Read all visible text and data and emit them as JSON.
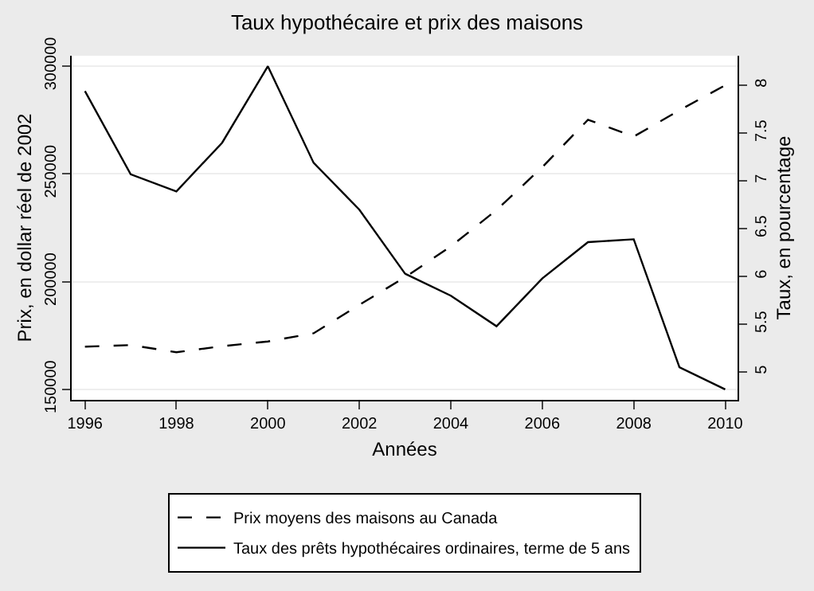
{
  "chart_data": {
    "type": "line",
    "title": "Taux hypothécaire et prix des maisons",
    "xlabel": "Années",
    "ylabel": "Prix, en dollar réel de 2002",
    "y2label": "Taux, en pourcentage",
    "x": [
      1996,
      1997,
      1998,
      1999,
      2000,
      2001,
      2002,
      2003,
      2004,
      2005,
      2006,
      2007,
      2008,
      2009,
      2010
    ],
    "series": [
      {
        "name": "Prix moyens des maisons au Canada",
        "color": "#000000",
        "line_style": "dashed",
        "values": [
          169800,
          170500,
          167200,
          170000,
          172200,
          176000,
          189200,
          202000,
          216300,
          233200,
          253100,
          275100,
          267300,
          279500,
          291100
        ]
      },
      {
        "name": "Taux des prêts hypothécaires ordinaires, terme de 5 ans",
        "color": "#000000",
        "line_style": "solid",
        "axis": "y2",
        "values": [
          7.94,
          7.07,
          6.89,
          7.4,
          8.2,
          7.19,
          6.7,
          6.03,
          5.8,
          5.48,
          5.98,
          6.36,
          6.39,
          5.05,
          4.82
        ]
      }
    ],
    "xlim": [
      1995.71,
      2010.27
    ],
    "xticks": [
      1996,
      1998,
      2000,
      2002,
      2004,
      2006,
      2008,
      2010
    ],
    "ylim": [
      145100,
      304800
    ],
    "yticks": [
      150000,
      200000,
      250000,
      300000
    ],
    "y2lim": [
      4.71,
      8.31
    ],
    "y2ticks": [
      5,
      5.5,
      6,
      6.5,
      7,
      7.5,
      8
    ],
    "grid": "y",
    "legend": "bottom",
    "marker": "none"
  }
}
